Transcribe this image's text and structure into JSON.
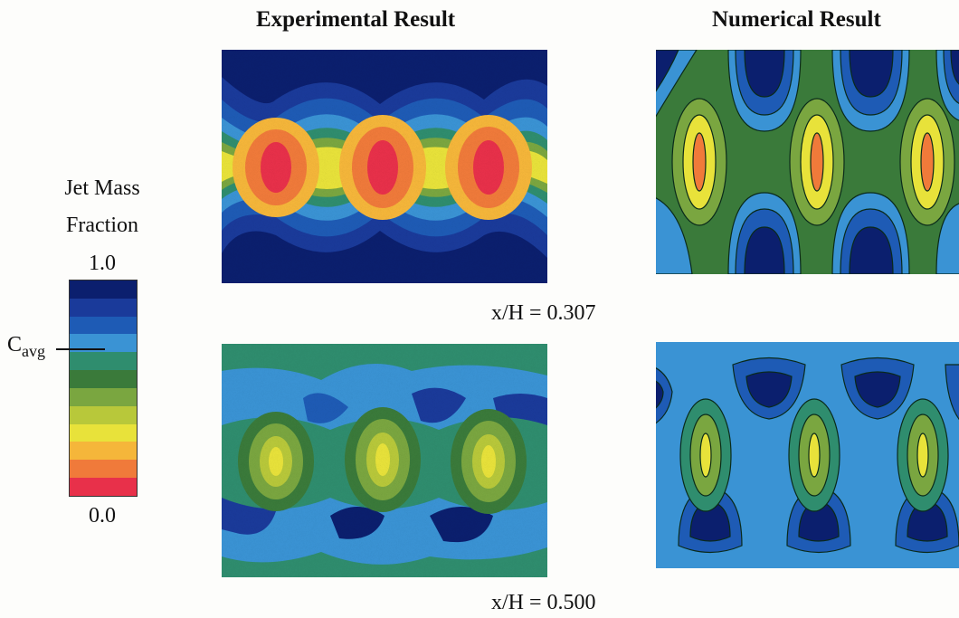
{
  "titles": {
    "experimental": "Experimental Result",
    "numerical": "Numerical Result"
  },
  "legend": {
    "title_line1": "Jet Mass",
    "title_line2": "Fraction",
    "max_label": "1.0",
    "min_label": "0.0",
    "cavg_main": "C",
    "cavg_sub": "avg",
    "colors": [
      "#0b1f6e",
      "#1a3a9a",
      "#1e5bb5",
      "#3a93d4",
      "#2f8d6e",
      "#3a7a3a",
      "#7aa640",
      "#b8c83a",
      "#e8e23a",
      "#f5b63a",
      "#f07a3a",
      "#e8304a"
    ]
  },
  "captions": {
    "row1": "x/H = 0.307",
    "row2": "x/H = 0.500"
  }
}
